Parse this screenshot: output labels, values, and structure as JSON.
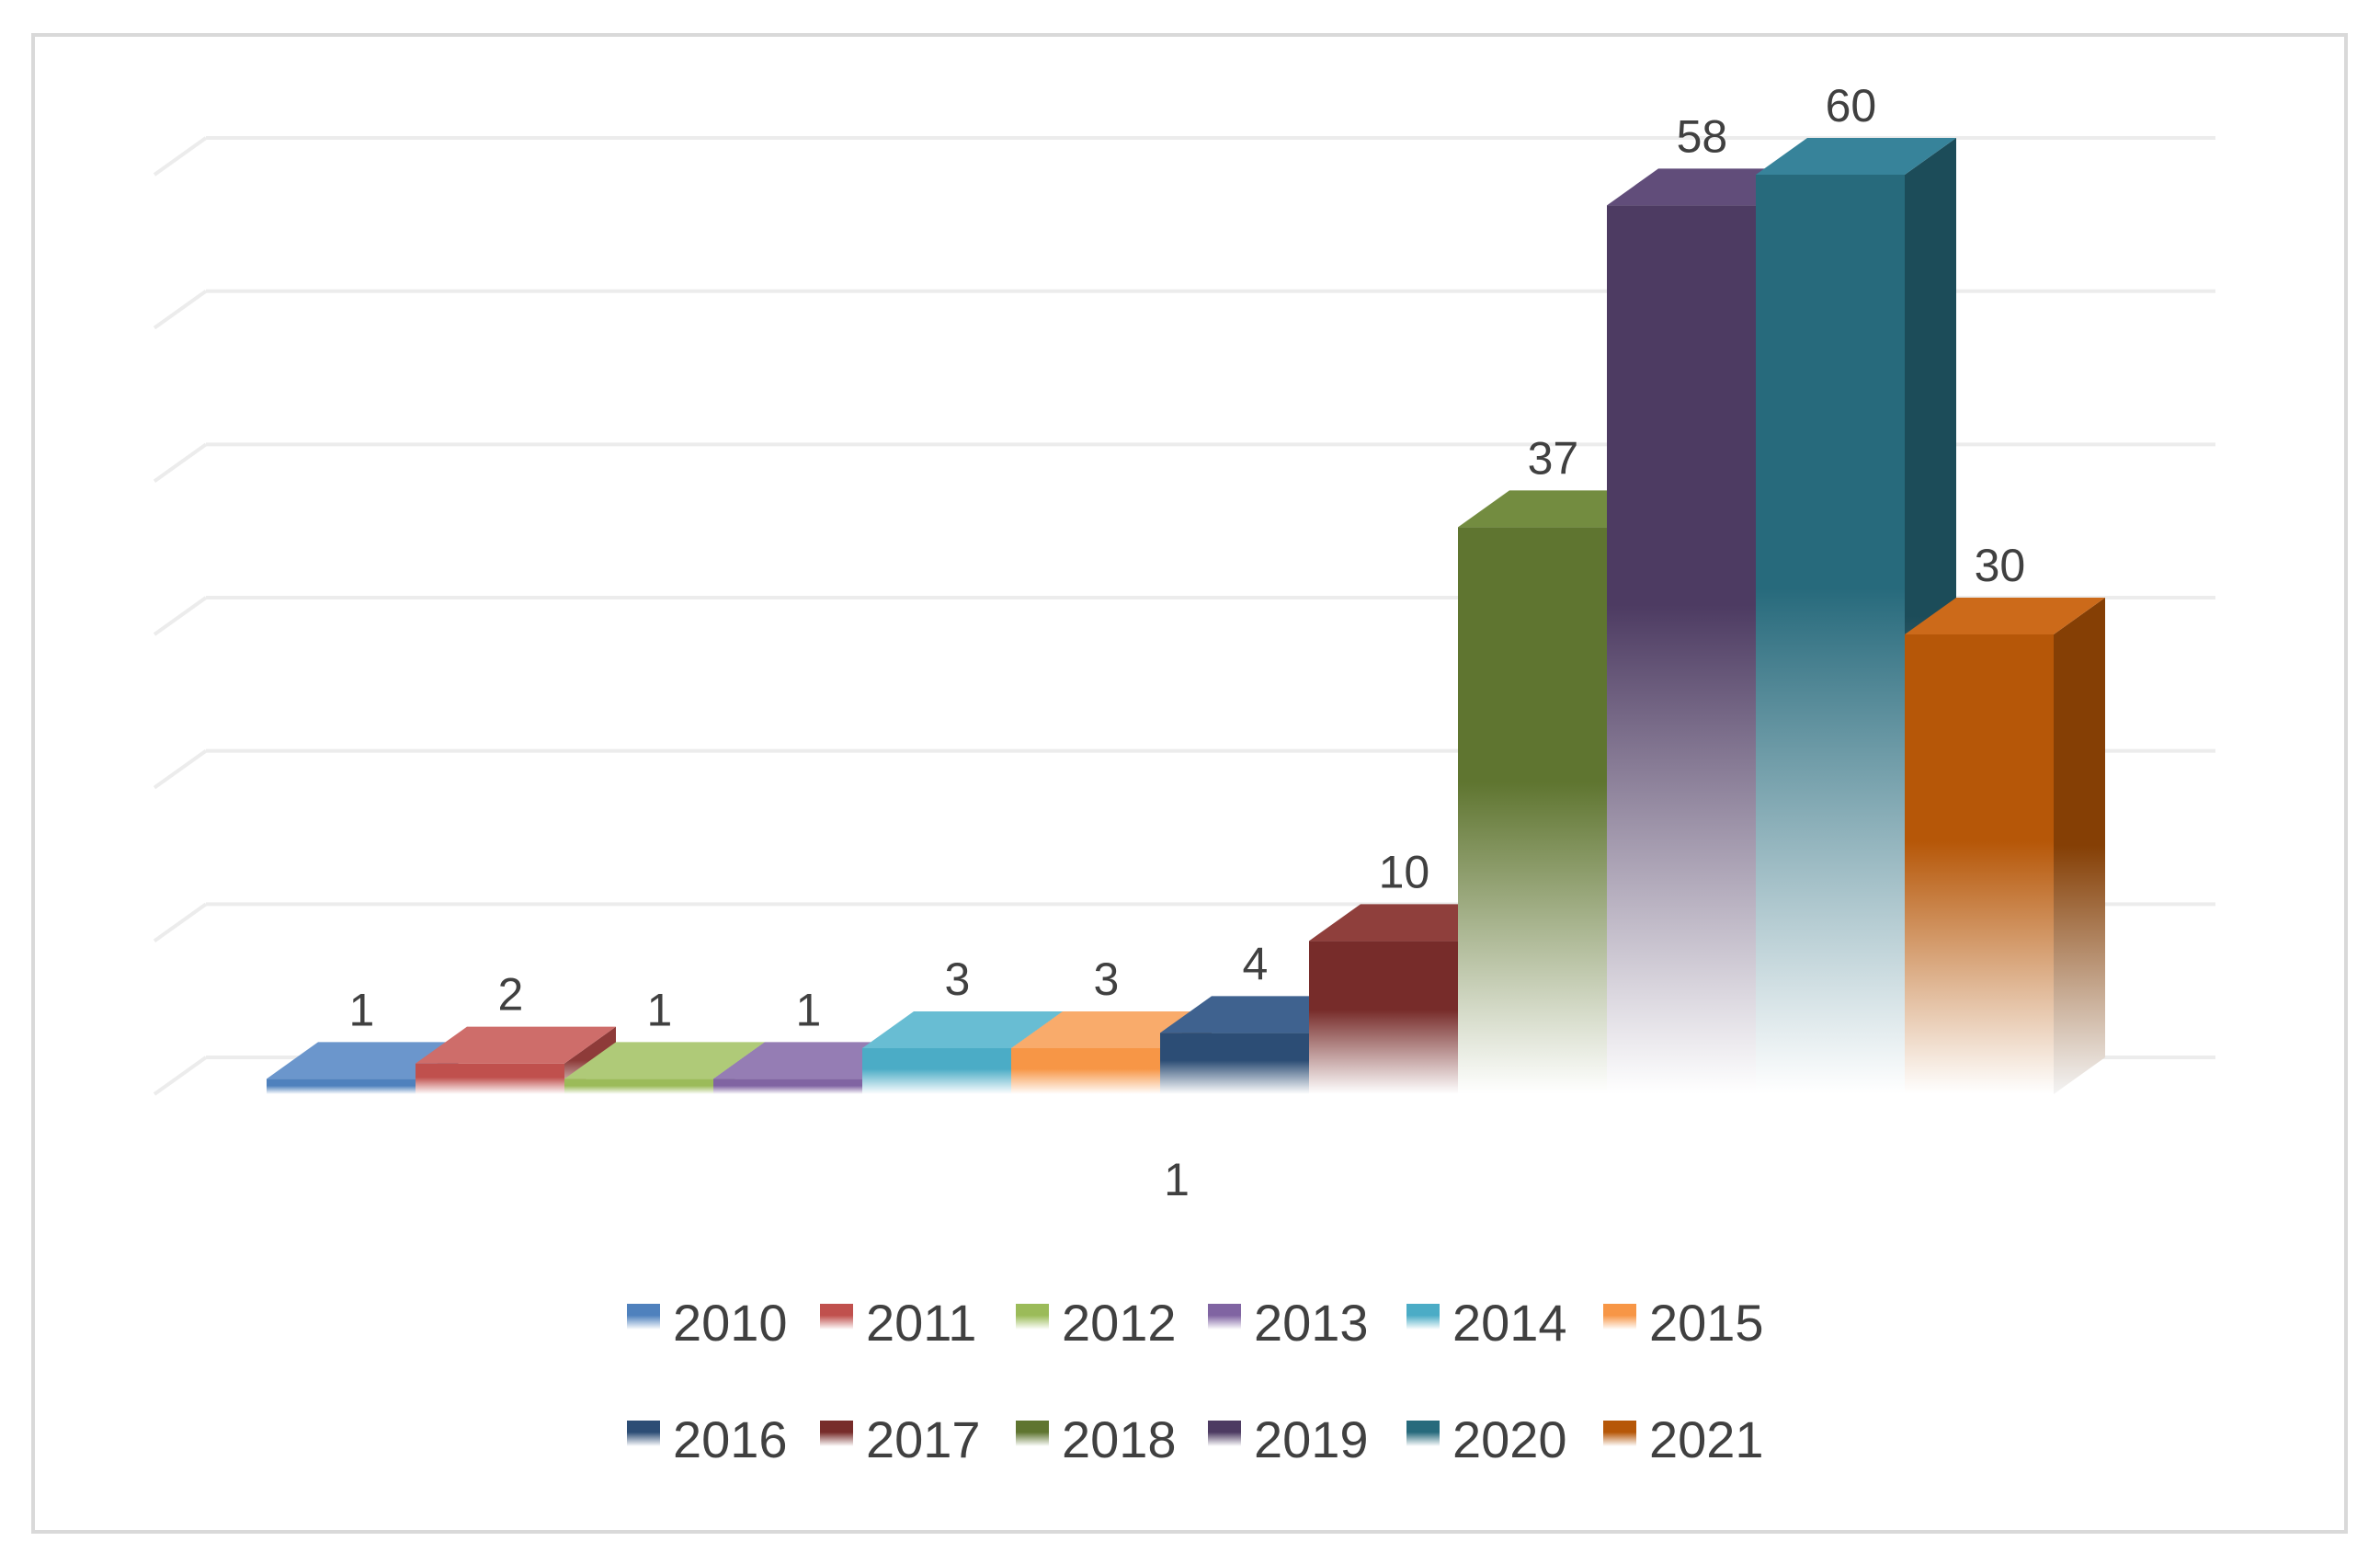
{
  "chart_data": {
    "type": "bar",
    "style": "3d-clustered-column",
    "title": "",
    "xlabel": "",
    "ylabel": "",
    "categories": [
      "1"
    ],
    "ylim": [
      0,
      60
    ],
    "grid": true,
    "legend_position": "bottom",
    "series": [
      {
        "name": "2010",
        "values": [
          1
        ],
        "color": "#4F81BD",
        "side_color": "#3A6190",
        "top_color": "#6B96CC"
      },
      {
        "name": "2011",
        "values": [
          2
        ],
        "color": "#C0504D",
        "side_color": "#8E3B39",
        "top_color": "#CE6D6A"
      },
      {
        "name": "2012",
        "values": [
          1
        ],
        "color": "#9BBB59",
        "side_color": "#728A42",
        "top_color": "#AFCA78"
      },
      {
        "name": "2013",
        "values": [
          1
        ],
        "color": "#8064A2",
        "side_color": "#5E4A78",
        "top_color": "#957DB4"
      },
      {
        "name": "2014",
        "values": [
          3
        ],
        "color": "#4BACC6",
        "side_color": "#377F93",
        "top_color": "#68BDD3"
      },
      {
        "name": "2015",
        "values": [
          3
        ],
        "color": "#F79646",
        "side_color": "#B86F33",
        "top_color": "#F9AB6B"
      },
      {
        "name": "2016",
        "values": [
          4
        ],
        "color": "#2C4D75",
        "side_color": "#1F3754",
        "top_color": "#3F628F"
      },
      {
        "name": "2017",
        "values": [
          10
        ],
        "color": "#772C2A",
        "side_color": "#561F1E",
        "top_color": "#8F3F3C"
      },
      {
        "name": "2018",
        "values": [
          37
        ],
        "color": "#5F7530",
        "side_color": "#455522",
        "top_color": "#738C40"
      },
      {
        "name": "2019",
        "values": [
          58
        ],
        "color": "#4D3B62",
        "side_color": "#372A47",
        "top_color": "#614D7A"
      },
      {
        "name": "2020",
        "values": [
          60
        ],
        "color": "#276A7C",
        "side_color": "#1C4C59",
        "top_color": "#37839A"
      },
      {
        "name": "2021",
        "values": [
          30
        ],
        "color": "#B65708",
        "side_color": "#853F05",
        "top_color": "#CC6A1A"
      }
    ]
  }
}
